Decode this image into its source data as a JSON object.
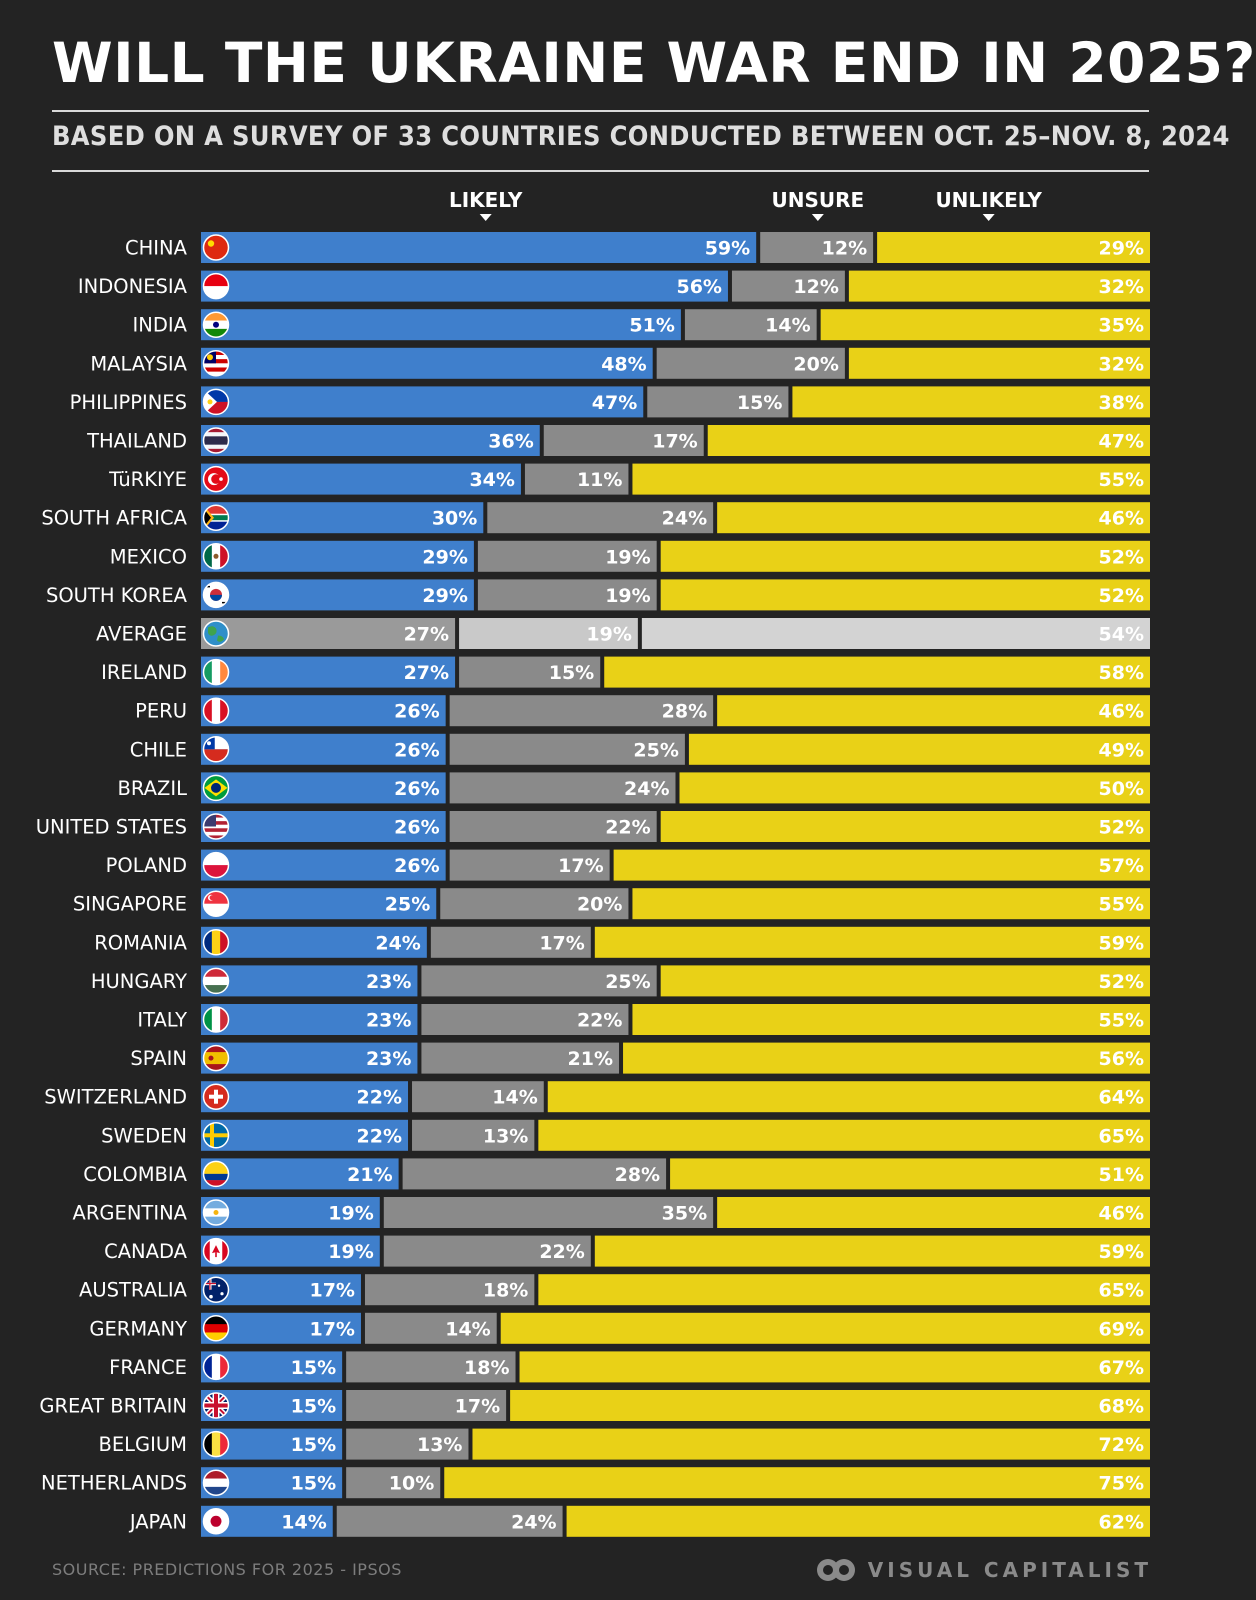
{
  "header": {
    "title": "WILL THE UKRAINE WAR END IN 2025?",
    "subtitle": "BASED ON A SURVEY OF 33 COUNTRIES CONDUCTED BETWEEN OCT. 25–NOV. 8, 2024"
  },
  "footer": {
    "source": "SOURCE: PREDICTIONS FOR 2025 - IPSOS",
    "brand": "VISUAL CAPITALIST"
  },
  "colors": {
    "likely": "#3f7fcc",
    "unsure": "#8a8a8a",
    "unlikely": "#e9d117",
    "average": "#9c9c9c",
    "background": "#232323"
  },
  "chart_data": {
    "type": "bar",
    "stacked": true,
    "orientation": "horizontal",
    "legend_position": "top",
    "value_suffix": "%",
    "series": [
      {
        "name": "LIKELY",
        "values": [
          59,
          56,
          51,
          48,
          47,
          36,
          34,
          30,
          29,
          29,
          27,
          27,
          26,
          26,
          26,
          26,
          26,
          25,
          24,
          23,
          23,
          23,
          22,
          22,
          21,
          19,
          19,
          17,
          17,
          15,
          15,
          15,
          15,
          14
        ]
      },
      {
        "name": "UNSURE",
        "values": [
          12,
          12,
          14,
          20,
          15,
          17,
          11,
          24,
          19,
          19,
          19,
          15,
          28,
          25,
          24,
          22,
          17,
          20,
          17,
          25,
          22,
          21,
          14,
          13,
          28,
          35,
          22,
          18,
          14,
          18,
          17,
          13,
          10,
          24
        ]
      },
      {
        "name": "UNLIKELY",
        "values": [
          29,
          32,
          35,
          32,
          38,
          47,
          55,
          46,
          52,
          52,
          54,
          58,
          46,
          49,
          50,
          52,
          57,
          55,
          59,
          52,
          55,
          56,
          64,
          65,
          51,
          46,
          59,
          65,
          69,
          67,
          68,
          72,
          75,
          62
        ]
      }
    ],
    "categories": [
      "CHINA",
      "INDONESIA",
      "INDIA",
      "MALAYSIA",
      "PHILIPPINES",
      "THAILAND",
      "TüRKIYE",
      "SOUTH AFRICA",
      "MEXICO",
      "SOUTH KOREA",
      "AVERAGE",
      "IRELAND",
      "PERU",
      "CHILE",
      "BRAZIL",
      "UNITED STATES",
      "POLAND",
      "SINGAPORE",
      "ROMANIA",
      "HUNGARY",
      "ITALY",
      "SPAIN",
      "SWITZERLAND",
      "SWEDEN",
      "COLOMBIA",
      "ARGENTINA",
      "CANADA",
      "AUSTRALIA",
      "GERMANY",
      "FRANCE",
      "GREAT BRITAIN",
      "BELGIUM",
      "NETHERLANDS",
      "JAPAN"
    ],
    "flags": [
      "china-flag-icon",
      "indonesia-flag-icon",
      "india-flag-icon",
      "malaysia-flag-icon",
      "philippines-flag-icon",
      "thailand-flag-icon",
      "turkiye-flag-icon",
      "south-africa-flag-icon",
      "mexico-flag-icon",
      "south-korea-flag-icon",
      "globe-icon",
      "ireland-flag-icon",
      "peru-flag-icon",
      "chile-flag-icon",
      "brazil-flag-icon",
      "united-states-flag-icon",
      "poland-flag-icon",
      "singapore-flag-icon",
      "romania-flag-icon",
      "hungary-flag-icon",
      "italy-flag-icon",
      "spain-flag-icon",
      "switzerland-flag-icon",
      "sweden-flag-icon",
      "colombia-flag-icon",
      "argentina-flag-icon",
      "canada-flag-icon",
      "australia-flag-icon",
      "germany-flag-icon",
      "france-flag-icon",
      "great-britain-flag-icon",
      "belgium-flag-icon",
      "netherlands-flag-icon",
      "japan-flag-icon"
    ],
    "highlight_category": "AVERAGE"
  }
}
